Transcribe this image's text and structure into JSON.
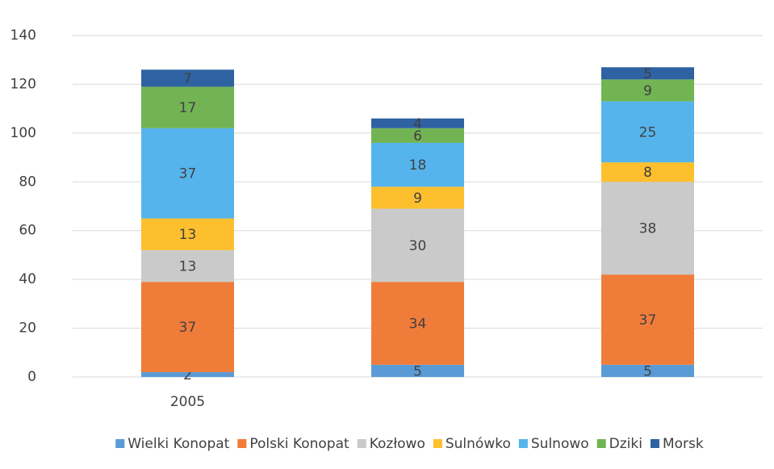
{
  "chart_data": {
    "type": "stacked_bar",
    "categories": [
      "2005",
      null,
      null
    ],
    "series": [
      {
        "name": "Wielki Konopat",
        "color": "#5b9bd5",
        "values": [
          2,
          5,
          5
        ]
      },
      {
        "name": "Polski Konopat",
        "color": "#f07c3a",
        "values": [
          37,
          34,
          37
        ]
      },
      {
        "name": "Kozłowo",
        "color": "#cacaca",
        "values": [
          13,
          30,
          38
        ]
      },
      {
        "name": "Sulnówko",
        "color": "#fdbf2d",
        "values": [
          13,
          9,
          8
        ]
      },
      {
        "name": "Sulnowo",
        "color": "#56b4ec",
        "values": [
          37,
          18,
          25
        ]
      },
      {
        "name": "Dziki",
        "color": "#72b454",
        "values": [
          17,
          6,
          9
        ]
      },
      {
        "name": "Morsk",
        "color": "#2f62a3",
        "values": [
          7,
          4,
          5
        ]
      }
    ],
    "ylim": [
      0,
      140
    ],
    "yticks": [
      0,
      20,
      40,
      60,
      80,
      100,
      120,
      140
    ],
    "grid": true,
    "legend": "bottom"
  }
}
